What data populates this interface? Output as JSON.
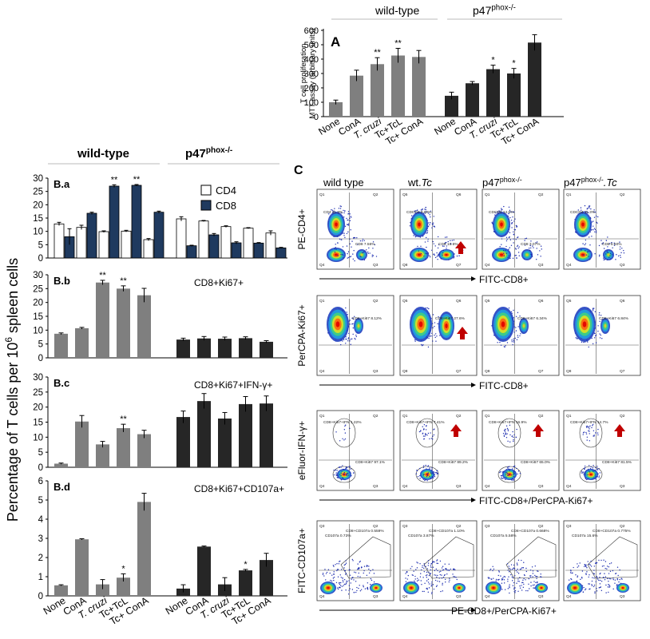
{
  "panelA": {
    "label": "A",
    "ylabel_line1": "T cell proliferation",
    "ylabel_line2": "MTT assay (arbitrary units)",
    "header_wt": "wild-type",
    "header_ko": "p47phox-/-",
    "categories": [
      "None",
      "ConA",
      "T. cruzi",
      "Tc+TcL",
      "Tc+ ConA"
    ]
  },
  "chart_data": [
    {
      "id": "A",
      "type": "bar",
      "ylim": [
        0,
        600
      ],
      "yticks": [
        0,
        100,
        200,
        300,
        400,
        500,
        600
      ],
      "categories": [
        "None",
        "ConA",
        "T. cruzi",
        "Tc+TcL",
        "Tc+ ConA"
      ],
      "series": [
        {
          "name": "wild-type",
          "color": "#7f7f7f",
          "values": [
            100,
            285,
            365,
            425,
            415
          ],
          "errors": [
            15,
            38,
            45,
            50,
            45
          ],
          "sig": [
            "",
            "",
            "**",
            "**",
            ""
          ]
        },
        {
          "name": "p47phox-/-",
          "color": "#262626",
          "values": [
            145,
            232,
            330,
            300,
            515
          ],
          "errors": [
            25,
            12,
            28,
            35,
            55
          ],
          "sig": [
            "",
            "",
            "*",
            "*",
            ""
          ]
        }
      ]
    },
    {
      "id": "B.a",
      "type": "bar",
      "ylim": [
        0,
        30
      ],
      "yticks": [
        0,
        5,
        10,
        15,
        20,
        25,
        30
      ],
      "legend": [
        {
          "name": "CD4",
          "color": "#ffffff"
        },
        {
          "name": "CD8",
          "color": "#1f3a5f"
        }
      ],
      "groups": [
        {
          "name": "wild-type",
          "CD4": [
            12.8,
            11.5,
            9.9,
            10.1,
            6.9
          ],
          "CD4_err": [
            0.6,
            0.8,
            0.3,
            0.3,
            0.4
          ],
          "CD8": [
            8.0,
            16.8,
            27.0,
            27.3,
            17.2
          ],
          "CD8_err": [
            3.0,
            0.4,
            0.5,
            0.3,
            0.4
          ],
          "sig": [
            "",
            "",
            "**",
            "**",
            ""
          ]
        },
        {
          "name": "p47phox-/-",
          "CD4": [
            14.7,
            13.9,
            11.8,
            11.2,
            9.4
          ],
          "CD4_err": [
            0.8,
            0.2,
            0.3,
            0.2,
            0.8
          ],
          "CD8": [
            4.6,
            8.7,
            5.7,
            5.6,
            3.8
          ],
          "CD8_err": [
            0.2,
            0.5,
            0.4,
            0.2,
            0.2
          ]
        }
      ]
    },
    {
      "id": "B.b",
      "type": "bar",
      "title": "CD8+Ki67+",
      "ylim": [
        0,
        30
      ],
      "yticks": [
        0,
        5,
        10,
        15,
        20,
        25,
        30
      ],
      "series": [
        {
          "name": "wild-type",
          "color": "#7f7f7f",
          "values": [
            8.7,
            10.7,
            27.2,
            25.0,
            22.6
          ],
          "errors": [
            0.3,
            0.3,
            0.8,
            1.0,
            2.5
          ],
          "sig": [
            "",
            "",
            "**",
            "**",
            ""
          ]
        },
        {
          "name": "p47phox-/-",
          "color": "#262626",
          "values": [
            6.6,
            7.0,
            6.9,
            7.1,
            5.8
          ],
          "errors": [
            0.5,
            0.7,
            0.6,
            0.5,
            0.4
          ]
        }
      ]
    },
    {
      "id": "B.c",
      "type": "bar",
      "title": "CD8+Ki67+IFN-γ+",
      "ylim": [
        0,
        30
      ],
      "yticks": [
        0,
        5,
        10,
        15,
        20,
        25,
        30
      ],
      "series": [
        {
          "name": "wild-type",
          "color": "#7f7f7f",
          "values": [
            1.2,
            15.2,
            7.6,
            13.0,
            11.0
          ],
          "errors": [
            0.2,
            2.0,
            1.0,
            1.3,
            1.3
          ],
          "sig": [
            "",
            "",
            "",
            "**",
            ""
          ]
        },
        {
          "name": "p47phox-/-",
          "color": "#262626",
          "values": [
            16.7,
            22.0,
            16.2,
            21.0,
            21.2
          ],
          "errors": [
            2.0,
            2.5,
            2.0,
            2.5,
            2.5
          ]
        }
      ]
    },
    {
      "id": "B.d",
      "type": "bar",
      "title": "CD8+Ki67+CD107a+",
      "ylim": [
        0,
        6
      ],
      "yticks": [
        0,
        1,
        2,
        3,
        4,
        5,
        6
      ],
      "series": [
        {
          "name": "wild-type",
          "color": "#7f7f7f",
          "values": [
            0.55,
            2.95,
            0.6,
            0.95,
            4.9
          ],
          "errors": [
            0.03,
            0.03,
            0.25,
            0.2,
            0.45
          ],
          "sig": [
            "",
            "",
            "",
            "*",
            ""
          ]
        },
        {
          "name": "p47phox-/-",
          "color": "#262626",
          "values": [
            0.38,
            2.57,
            0.6,
            1.33,
            1.87
          ],
          "errors": [
            0.2,
            0.03,
            0.35,
            0.05,
            0.35
          ],
          "sig": [
            "",
            "",
            "",
            "*",
            ""
          ]
        }
      ]
    }
  ],
  "panelB": {
    "header_wt": "wild-type",
    "header_ko": "p47phox-/-",
    "ylabel": "Percentage of T cells per 106 spleen cells",
    "panel_labels": [
      "B.a",
      "B.b",
      "B.c",
      "B.d"
    ],
    "titles": [
      "",
      "CD8+Ki67+",
      "CD8+Ki67+IFN-γ+",
      "CD8+Ki67+CD107a+"
    ],
    "legend_cd4": "CD4",
    "legend_cd8": "CD8",
    "categories": [
      "None",
      "ConA",
      "T. cruzi",
      "Tc+TcL",
      "Tc+ ConA"
    ]
  },
  "panelC": {
    "label": "C",
    "col_headers": [
      "wild type",
      "wt.Tc",
      "p47phox-/-",
      "p47phox-/-.Tc"
    ],
    "rows": [
      {
        "ylabel": "PE-CD4+",
        "xlabel": "FITC-CD8+",
        "quads": [
          [
            "Q1 13.6%",
            "Q2 0.766%",
            "Q3 31.4%",
            "Q4 55.8%"
          ],
          [
            "Q5 12.7%",
            "Q6 1.76%",
            "Q7 31.7%",
            "Q8 53.8%"
          ],
          [
            "Q1 21.4%",
            "Q2 0.00%",
            "Q3 3.07%",
            "Q4 75.5%"
          ],
          [
            "Q1 14.5%",
            "Q2 1.68%",
            "Q3 8.27%",
            "Q4 75.6%"
          ]
        ],
        "gates": [
          [
            "CD4 11.3%",
            "CD8 7.56%"
          ],
          [
            "CDCD4 9.60%",
            "CD8 16.6%"
          ],
          [
            "CDCD4 14.6%",
            "CD8 3.07%"
          ],
          [
            "CDCD4 11.3%",
            "CD8 5.60%"
          ]
        ]
      },
      {
        "ylabel": "PerCPA-Ki67+",
        "xlabel": "FITC-CD8+",
        "quads": [
          [
            "Q1 67.8%",
            "Q2 9.94%",
            "Q3 0.166%",
            "Q4 2.01%"
          ],
          [
            "Q5 67.0%",
            "Q6 31.5%",
            "Q7 0.167%",
            "Q8 1.29%"
          ],
          [
            "Q5 90.7%",
            "Q6 7.71%",
            "Q7 0.117%",
            "Q8 1.44%"
          ],
          [
            "Q5 89.5%",
            "Q6 8.04%",
            "Q7 0.113%",
            "Q8 2.61%"
          ]
        ],
        "gates": [
          [
            "CD8+Ki67 8.12%"
          ],
          [
            "CD8+Ki67 27.6%"
          ],
          [
            "CD8+Ki67 6.34%"
          ],
          [
            "CD8+Ki67 6.84%"
          ]
        ]
      },
      {
        "ylabel": "eFluor-IFN-γ+",
        "xlabel": "FITC-CD8+/PerCPA-Ki67+",
        "quads": [
          [
            "Q1 0.00%",
            "Q2 1.72%",
            "Q3 98.3%",
            "Q4 0.00%"
          ],
          [
            "Q1 0.00%",
            "Q2 8.19%",
            "Q3 91.8%",
            "Q4 0.00%"
          ],
          [
            "Q1 0.00%",
            "Q2 17.5%",
            "Q3 82.5%",
            "Q4 0.00%"
          ],
          [
            "Q1 0.00%",
            "Q2 16.0%",
            "Q3 84.0%",
            "Q4 0.00%"
          ]
        ],
        "gates": [
          [
            "CD8+Ki67+IFN 1.22%",
            "CD8+Ki67 97.1%"
          ],
          [
            "CD8+Ki67+IFN 7.41%",
            "CD8+Ki67 89.2%"
          ],
          [
            "CD8+Ki67+IFN 16.9%",
            "CD8+Ki67 65.0%"
          ],
          [
            "CD8+Ki67+IFN 14.7%",
            "CD8+Ki67 81.5%"
          ]
        ]
      },
      {
        "ylabel": "FITC-CD107a+",
        "xlabel": "PE-CD8+/PerCPA-Ki67+",
        "quads": [
          [
            "Q3 4.22%",
            "Q2 1.29%",
            "Q3 0.15%",
            "Q4 93.6%"
          ],
          [
            "Q3 4.69%",
            "Q2 1.22%",
            "Q3 26.6%",
            "Q4 67.4%"
          ],
          [
            "Q3 7.66%",
            "Q2 2.34%",
            "Q3 0.98%",
            "Q4 89.0%"
          ],
          [
            "Q3 16.4%",
            "Q2 2.25%",
            "Q3 0.00%",
            "Q4 75.4%"
          ]
        ],
        "gates": [
          [
            "CD107a 0.73%",
            "CD8+CD107a 0.559%"
          ],
          [
            "CD107a 3.87%",
            "CD8+CD107a 1.10%"
          ],
          [
            "CD107a 5.58%",
            "CD8+CD107a 0.668%"
          ],
          [
            "CD107a 15.6%",
            "CD8+CD107a 0.775%"
          ]
        ]
      }
    ]
  }
}
